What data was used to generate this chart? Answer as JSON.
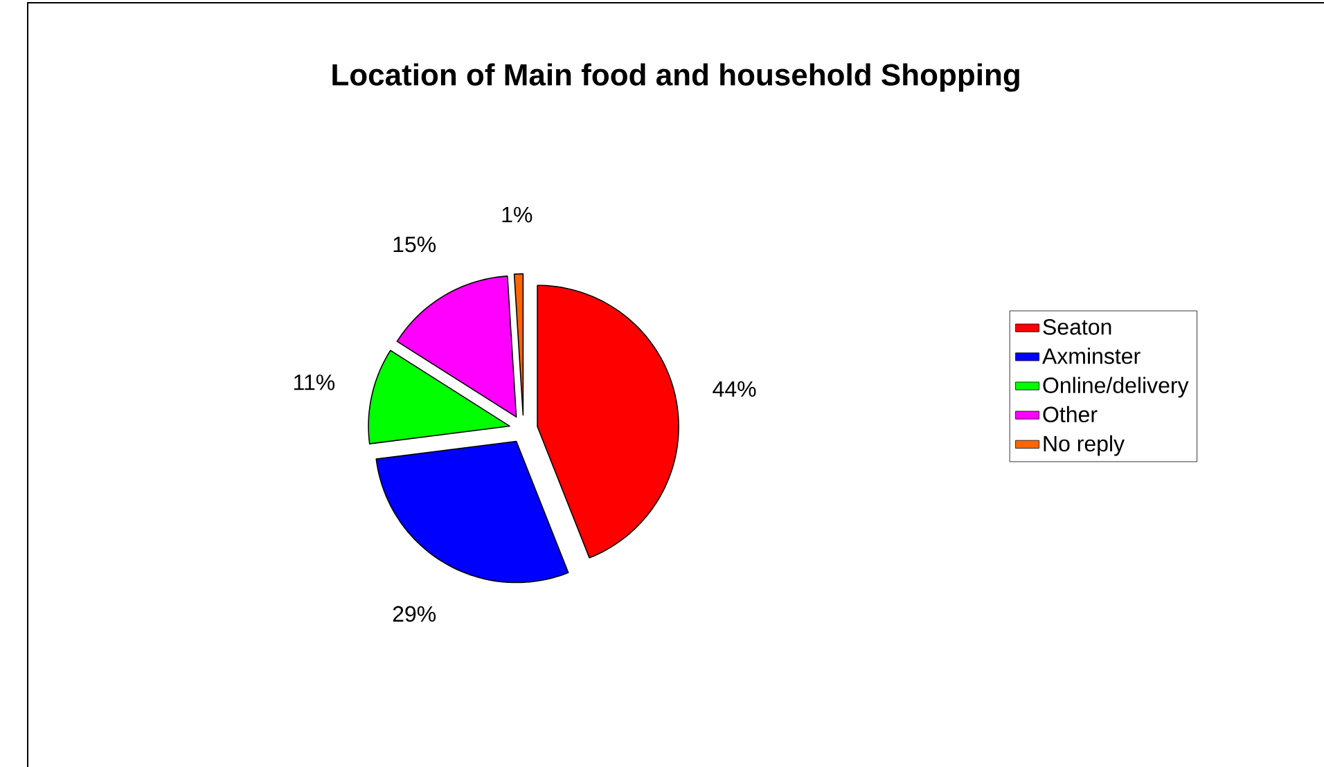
{
  "chart_data": {
    "type": "pie",
    "title": "Location of Main food and household Shopping",
    "categories": [
      "Seaton",
      "Axminster",
      "Online/delivery",
      "Other",
      "No reply"
    ],
    "values": [
      44,
      29,
      11,
      15,
      1
    ],
    "colors": [
      "#ff0000",
      "#0000ff",
      "#00ff00",
      "#ff00ff",
      "#ff6600"
    ],
    "value_labels": [
      "44%",
      "29%",
      "11%",
      "15%",
      "1%"
    ],
    "legend": "right"
  }
}
